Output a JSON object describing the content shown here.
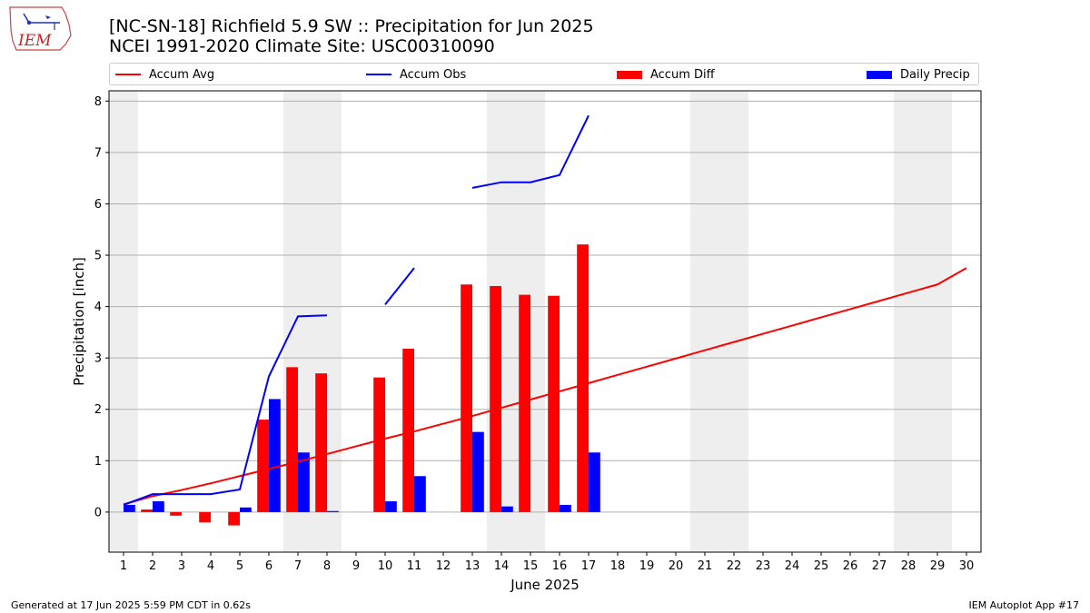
{
  "header": {
    "title_line1": "[NC-SN-18] Richfield 5.9 SW :: Precipitation for Jun 2025",
    "title_line2": "NCEI 1991-2020 Climate Site: USC00310090"
  },
  "logo": {
    "text": "IEM"
  },
  "footer": {
    "left": "Generated at 17 Jun 2025 5:59 PM CDT in 0.62s",
    "right": "IEM Autoplot App #17"
  },
  "colors": {
    "accum_avg": "#ff0000",
    "accum_obs": "#0000ff",
    "accum_diff": "#ff0000",
    "daily_precip": "#0000ff",
    "weekend_band": "#eeeeee",
    "grid": "#b0b0b0"
  },
  "chart_data": {
    "type": "bar",
    "xlabel": "June 2025",
    "ylabel": "Precipitation [inch]",
    "xlim": [
      0.5,
      30.5
    ],
    "ylim": [
      -0.78,
      8.2
    ],
    "yticks": [
      0,
      1,
      2,
      3,
      4,
      5,
      6,
      7,
      8
    ],
    "days": [
      1,
      2,
      3,
      4,
      5,
      6,
      7,
      8,
      9,
      10,
      11,
      12,
      13,
      14,
      15,
      16,
      17,
      18,
      19,
      20,
      21,
      22,
      23,
      24,
      25,
      26,
      27,
      28,
      29,
      30
    ],
    "grid": "horizontal",
    "legend_position": "top",
    "weekend_bands": [
      [
        0.5,
        1.5
      ],
      [
        6.5,
        8.5
      ],
      [
        13.5,
        15.5
      ],
      [
        20.5,
        22.5
      ],
      [
        27.5,
        29.5
      ]
    ],
    "series": [
      {
        "name": "Accum Avg",
        "kind": "line",
        "values": [
          0.15,
          0.31,
          0.43,
          0.56,
          0.7,
          0.84,
          0.98,
          1.13,
          1.28,
          1.43,
          1.57,
          1.72,
          1.87,
          2.03,
          2.19,
          2.35,
          2.51,
          2.67,
          2.83,
          2.99,
          3.15,
          3.31,
          3.47,
          3.63,
          3.79,
          3.95,
          4.11,
          4.27,
          4.43,
          4.75
        ]
      },
      {
        "name": "Accum Obs",
        "kind": "line",
        "values": [
          0.14,
          0.35,
          0.35,
          0.35,
          0.44,
          2.64,
          3.81,
          3.83,
          null,
          4.04,
          4.75,
          null,
          6.31,
          6.42,
          6.42,
          6.56,
          7.72,
          null,
          null,
          null,
          null,
          null,
          null,
          null,
          null,
          null,
          null,
          null,
          null,
          null
        ]
      },
      {
        "name": "Accum Diff",
        "kind": "bar",
        "values": [
          0.0,
          0.05,
          -0.07,
          -0.2,
          -0.26,
          1.8,
          2.82,
          2.7,
          null,
          2.62,
          3.18,
          null,
          4.43,
          4.4,
          4.23,
          4.21,
          5.21,
          null,
          null,
          null,
          null,
          null,
          null,
          null,
          null,
          null,
          null,
          null,
          null,
          null
        ]
      },
      {
        "name": "Daily Precip",
        "kind": "bar",
        "values": [
          0.14,
          0.21,
          0.0,
          0.0,
          0.09,
          2.2,
          1.16,
          0.02,
          null,
          0.21,
          0.7,
          null,
          1.56,
          0.11,
          0.0,
          0.14,
          1.16,
          null,
          null,
          null,
          null,
          null,
          null,
          null,
          null,
          null,
          null,
          null,
          null,
          null
        ]
      }
    ]
  }
}
